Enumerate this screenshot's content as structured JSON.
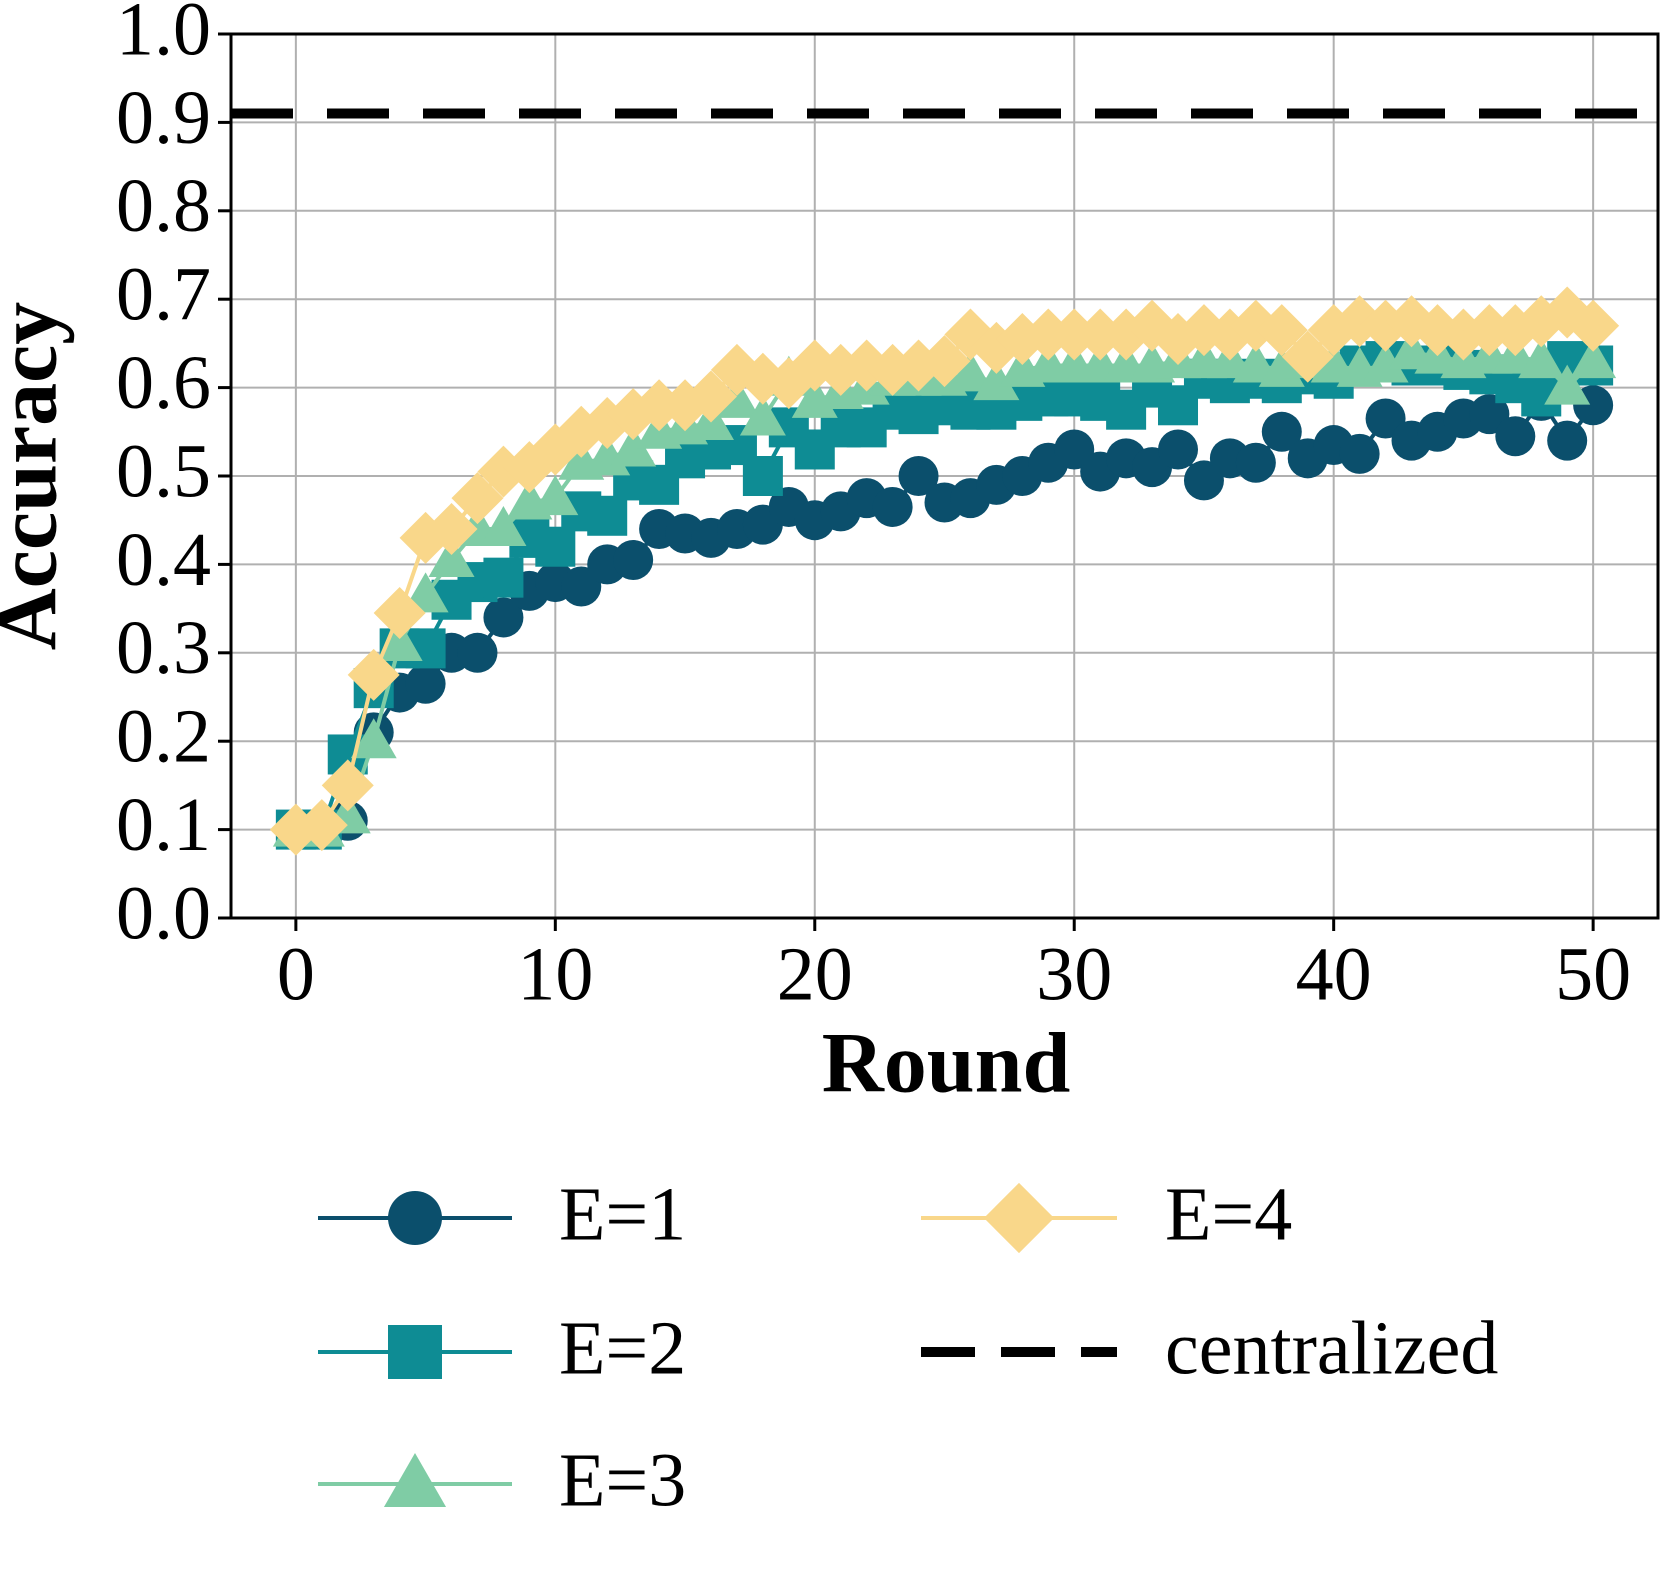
{
  "chart_data": {
    "type": "line",
    "x_label": "Round",
    "y_label": "Accuracy",
    "x": [
      0,
      1,
      2,
      3,
      4,
      5,
      6,
      7,
      8,
      9,
      10,
      11,
      12,
      13,
      14,
      15,
      16,
      17,
      18,
      19,
      20,
      21,
      22,
      23,
      24,
      25,
      26,
      27,
      28,
      29,
      30,
      31,
      32,
      33,
      34,
      35,
      36,
      37,
      38,
      39,
      40,
      41,
      42,
      43,
      44,
      45,
      46,
      47,
      48,
      49,
      50
    ],
    "series": [
      {
        "name": "E=1",
        "color": "#0b4f6c",
        "marker": "circle",
        "values": [
          0.1,
          0.1,
          0.11,
          0.21,
          0.255,
          0.265,
          0.3,
          0.3,
          0.34,
          0.37,
          0.38,
          0.375,
          0.4,
          0.405,
          0.44,
          0.435,
          0.43,
          0.44,
          0.445,
          0.465,
          0.45,
          0.46,
          0.475,
          0.465,
          0.5,
          0.47,
          0.475,
          0.49,
          0.5,
          0.515,
          0.53,
          0.505,
          0.52,
          0.51,
          0.53,
          0.495,
          0.52,
          0.515,
          0.55,
          0.52,
          0.535,
          0.525,
          0.565,
          0.54,
          0.55,
          0.565,
          0.57,
          0.545,
          0.585,
          0.54,
          0.58
        ]
      },
      {
        "name": "E=2",
        "color": "#0e8c94",
        "marker": "square",
        "values": [
          0.1,
          0.1,
          0.185,
          0.26,
          0.305,
          0.305,
          0.36,
          0.38,
          0.385,
          0.43,
          0.42,
          0.46,
          0.455,
          0.495,
          0.49,
          0.52,
          0.53,
          0.535,
          0.5,
          0.555,
          0.53,
          0.555,
          0.555,
          0.575,
          0.57,
          0.58,
          0.575,
          0.575,
          0.585,
          0.59,
          0.59,
          0.585,
          0.575,
          0.6,
          0.58,
          0.61,
          0.605,
          0.61,
          0.605,
          0.615,
          0.61,
          0.625,
          0.63,
          0.625,
          0.625,
          0.62,
          0.615,
          0.605,
          0.59,
          0.63,
          0.625
        ]
      },
      {
        "name": "E=3",
        "color": "#7fcca5",
        "marker": "triangle",
        "values": [
          0.1,
          0.1,
          0.115,
          0.2,
          0.31,
          0.365,
          0.405,
          0.44,
          0.44,
          0.47,
          0.475,
          0.515,
          0.52,
          0.53,
          0.55,
          0.555,
          0.56,
          0.585,
          0.565,
          0.61,
          0.585,
          0.595,
          0.6,
          0.61,
          0.61,
          0.61,
          0.615,
          0.605,
          0.62,
          0.625,
          0.625,
          0.625,
          0.625,
          0.625,
          0.63,
          0.63,
          0.63,
          0.625,
          0.62,
          0.63,
          0.625,
          0.62,
          0.625,
          0.64,
          0.635,
          0.63,
          0.635,
          0.635,
          0.63,
          0.6,
          0.63
        ]
      },
      {
        "name": "E=4",
        "color": "#f9d78a",
        "marker": "diamond",
        "values": [
          0.1,
          0.105,
          0.15,
          0.275,
          0.345,
          0.43,
          0.44,
          0.475,
          0.505,
          0.51,
          0.53,
          0.55,
          0.56,
          0.57,
          0.58,
          0.58,
          0.59,
          0.62,
          0.61,
          0.605,
          0.625,
          0.62,
          0.625,
          0.62,
          0.625,
          0.63,
          0.66,
          0.645,
          0.655,
          0.66,
          0.66,
          0.66,
          0.66,
          0.67,
          0.655,
          0.665,
          0.66,
          0.67,
          0.665,
          0.635,
          0.665,
          0.675,
          0.67,
          0.675,
          0.665,
          0.66,
          0.665,
          0.665,
          0.675,
          0.685,
          0.67
        ]
      }
    ],
    "reference": {
      "name": "centralized",
      "value": 0.91,
      "color": "#000000"
    },
    "xlim": [
      -2.5,
      52.5
    ],
    "ylim": [
      0,
      1
    ],
    "xticks": [
      0,
      10,
      20,
      30,
      40,
      50
    ],
    "yticks": [
      {
        "value": 0,
        "label": "0.0"
      },
      0.1,
      0.2,
      0.3,
      0.4,
      0.5,
      0.6,
      0.7,
      0.8,
      0.9,
      {
        "value": 1,
        "label": "1.0"
      }
    ],
    "grid": true,
    "legend": "below"
  }
}
